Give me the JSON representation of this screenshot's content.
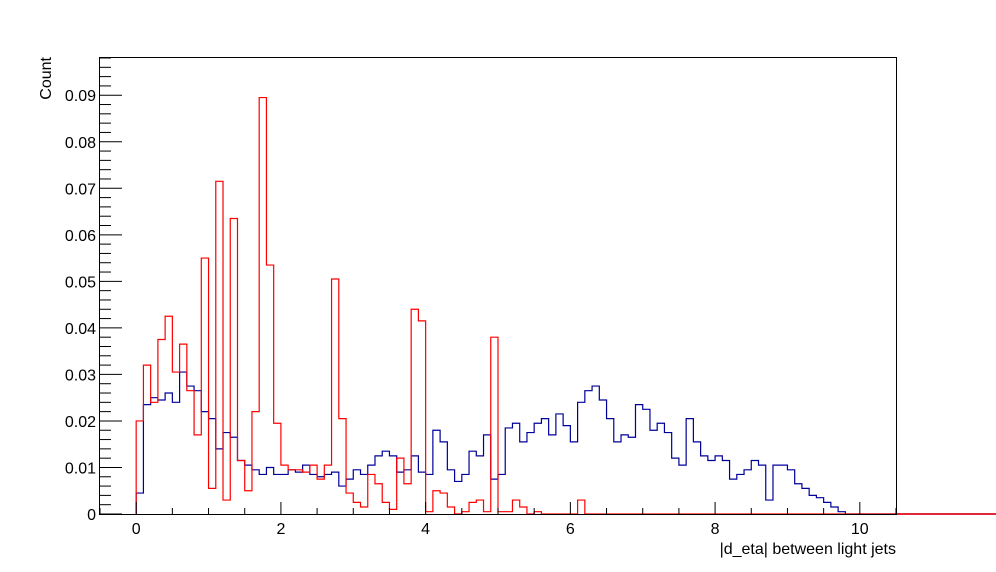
{
  "chart_data": {
    "type": "histogram",
    "xlabel": "|d_eta| between light jets",
    "ylabel": "Count",
    "xlim": [
      -0.5,
      10.5
    ],
    "ylim": [
      0,
      0.098
    ],
    "x_ticks": [
      0,
      2,
      4,
      6,
      8,
      10
    ],
    "x_tick_labels": [
      "0",
      "2",
      "4",
      "6",
      "8",
      "10"
    ],
    "y_ticks": [
      0,
      0.01,
      0.02,
      0.03,
      0.04,
      0.05,
      0.06,
      0.07,
      0.08,
      0.09
    ],
    "y_tick_labels": [
      "0",
      "0.01",
      "0.02",
      "0.03",
      "0.04",
      "0.05",
      "0.06",
      "0.07",
      "0.08",
      "0.09"
    ],
    "bin_width": 0.1,
    "x_range": [
      -0.5,
      10.5
    ],
    "grid": false,
    "legend": false,
    "series": [
      {
        "color": "#000099",
        "start": 0.0,
        "values": [
          0.0045,
          0.0235,
          0.025,
          0.0245,
          0.026,
          0.024,
          0.0305,
          0.0275,
          0.0265,
          0.022,
          0.0205,
          0.014,
          0.0175,
          0.0165,
          0.0115,
          0.0105,
          0.0095,
          0.0085,
          0.01,
          0.0085,
          0.0085,
          0.0095,
          0.009,
          0.0105,
          0.0085,
          0.008,
          0.0085,
          0.009,
          0.006,
          0.0075,
          0.0095,
          0.0085,
          0.0105,
          0.0125,
          0.0135,
          0.0125,
          0.009,
          0.0095,
          0.0125,
          0.009,
          0.0085,
          0.018,
          0.0155,
          0.0095,
          0.007,
          0.0085,
          0.0135,
          0.0125,
          0.017,
          0.0075,
          0.0085,
          0.0185,
          0.0195,
          0.0155,
          0.0175,
          0.0195,
          0.0205,
          0.017,
          0.0215,
          0.019,
          0.0155,
          0.024,
          0.0265,
          0.0275,
          0.0245,
          0.0205,
          0.0155,
          0.017,
          0.0165,
          0.0235,
          0.0225,
          0.018,
          0.0195,
          0.0175,
          0.012,
          0.0105,
          0.0205,
          0.0155,
          0.0125,
          0.0115,
          0.0125,
          0.0115,
          0.0075,
          0.0085,
          0.0095,
          0.0115,
          0.0105,
          0.003,
          0.0105,
          0.0105,
          0.0095,
          0.0065,
          0.0055,
          0.004,
          0.0035,
          0.0025,
          0.0015,
          0.0005,
          0,
          0,
          0,
          0,
          0,
          0,
          0,
          0,
          0,
          0,
          0,
          0,
          0,
          0,
          0,
          0,
          0,
          0,
          0,
          0,
          0,
          0,
          0,
          0,
          0,
          0,
          0,
          0,
          0,
          0,
          0,
          0,
          0,
          0,
          0,
          0,
          0,
          0,
          0,
          0,
          0,
          0
        ]
      },
      {
        "color": "#ff0000",
        "start": 0.0,
        "values": [
          0.02,
          0.032,
          0.024,
          0.0375,
          0.0425,
          0.0305,
          0.0365,
          0.0265,
          0.017,
          0.055,
          0.0055,
          0.0715,
          0.003,
          0.0635,
          0.0115,
          0.005,
          0.022,
          0.0895,
          0.0535,
          0.0195,
          0.0105,
          0.0095,
          0.0095,
          0.009,
          0.0105,
          0.0075,
          0.0105,
          0.0505,
          0.0205,
          0.0045,
          0.0025,
          0.0015,
          0.0085,
          0.0065,
          0.0025,
          0.001,
          0.012,
          0.0065,
          0.044,
          0.0415,
          0.0005,
          0.005,
          0.0045,
          0.0015,
          0.0,
          0.0005,
          0.0025,
          0.003,
          0.0005,
          0.038,
          0.0005,
          0.0005,
          0.003,
          0.0015,
          0.0,
          0.0005,
          0.0,
          0.0,
          0.0,
          0.0,
          0.0,
          0.003,
          0.0,
          0.0,
          0.0,
          0.0,
          0.0,
          0.0,
          0.0,
          0.0,
          0.0,
          0.0,
          0.0,
          0.0,
          0.0,
          0.0,
          0.0,
          0.0,
          0.0,
          0.0,
          0,
          0,
          0,
          0,
          0,
          0,
          0,
          0,
          0,
          0,
          0,
          0,
          0,
          0,
          0,
          0,
          0,
          0,
          0,
          0,
          0,
          0,
          0,
          0,
          0,
          0,
          0,
          0,
          0,
          0,
          0,
          0,
          0,
          0,
          0,
          0,
          0,
          0,
          0,
          0,
          0,
          0,
          0,
          0,
          0,
          0,
          0,
          0,
          0,
          0,
          0,
          0,
          0,
          0,
          0,
          0,
          0,
          0,
          0,
          0,
          0,
          0
        ]
      }
    ]
  }
}
